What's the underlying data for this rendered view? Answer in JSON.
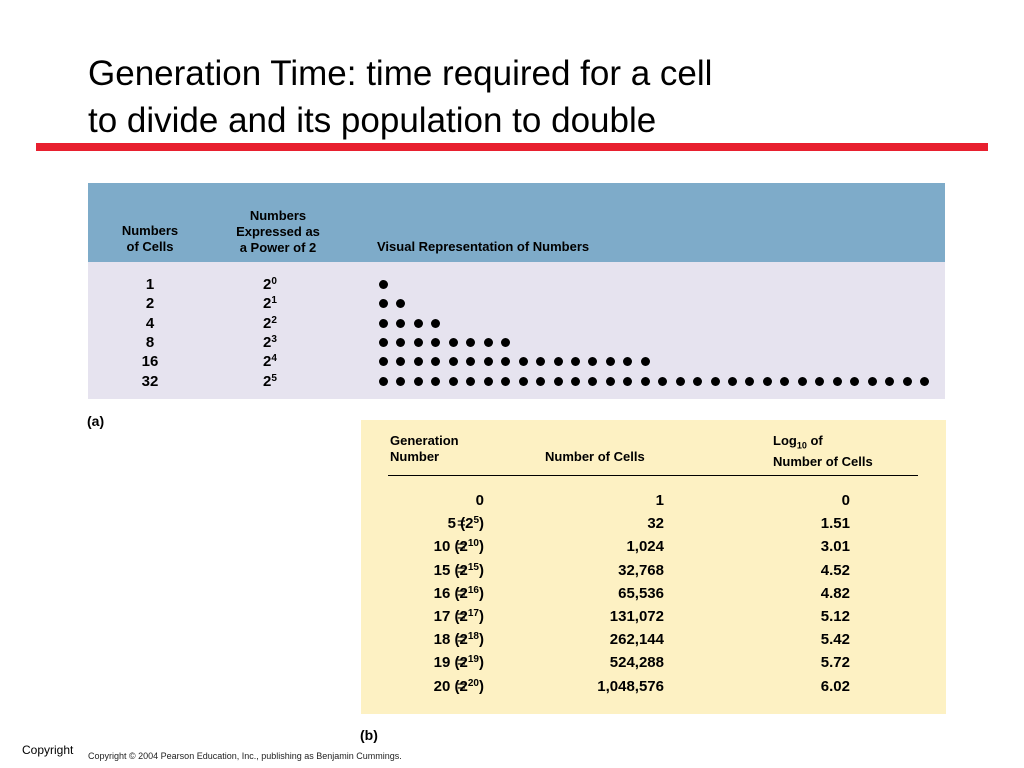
{
  "title": {
    "line1": "Generation Time: time required for a cell",
    "line2": "to divide and its population to double"
  },
  "table_a": {
    "headers": {
      "numbers_of_cells": "Numbers\nof Cells",
      "power_of_2": "Numbers\nExpressed as\na Power of 2",
      "visual": "Visual Representation of Numbers"
    },
    "rows": [
      {
        "count": "1",
        "base": "2",
        "exp": "0",
        "dots": 1
      },
      {
        "count": "2",
        "base": "2",
        "exp": "1",
        "dots": 2
      },
      {
        "count": "4",
        "base": "2",
        "exp": "2",
        "dots": 4
      },
      {
        "count": "8",
        "base": "2",
        "exp": "3",
        "dots": 8
      },
      {
        "count": "16",
        "base": "2",
        "exp": "4",
        "dots": 16
      },
      {
        "count": "32",
        "base": "2",
        "exp": "5",
        "dots": 32
      }
    ],
    "label": "(a)"
  },
  "table_b": {
    "headers": {
      "generation": "Generation\nNumber",
      "cells": "Number of Cells",
      "log_prefix": "Log",
      "log_sub": "10",
      "log_suffix": " of\nNumber of Cells"
    },
    "rows": [
      {
        "gen": "0",
        "pow_base": "",
        "pow_exp": "",
        "pow_close": "",
        "eq": "",
        "cells": "1",
        "log": "0"
      },
      {
        "gen": "5 (2",
        "pow_exp": "5",
        "pow_close": ")",
        "eq": "=",
        "cells": "32",
        "log": "1.51"
      },
      {
        "gen": "10 (2",
        "pow_exp": "10",
        "pow_close": ")",
        "eq": "=",
        "cells": "1,024",
        "log": "3.01"
      },
      {
        "gen": "15 (2",
        "pow_exp": "15",
        "pow_close": ")",
        "eq": "=",
        "cells": "32,768",
        "log": "4.52"
      },
      {
        "gen": "16 (2",
        "pow_exp": "16",
        "pow_close": ")",
        "eq": "=",
        "cells": "65,536",
        "log": "4.82"
      },
      {
        "gen": "17 (2",
        "pow_exp": "17",
        "pow_close": ")",
        "eq": "=",
        "cells": "131,072",
        "log": "5.12"
      },
      {
        "gen": "18 (2",
        "pow_exp": "18",
        "pow_close": ")",
        "eq": "=",
        "cells": "262,144",
        "log": "5.42"
      },
      {
        "gen": "19 (2",
        "pow_exp": "19",
        "pow_close": ")",
        "eq": "=",
        "cells": "524,288",
        "log": "5.72"
      },
      {
        "gen": "20 (2",
        "pow_exp": "20",
        "pow_close": ")",
        "eq": "=",
        "cells": "1,048,576",
        "log": "6.02"
      }
    ],
    "label": "(b)"
  },
  "footer": {
    "copyright_short": "Copyright",
    "copyright_full": "Copyright © 2004 Pearson Education, Inc., publishing as Benjamin Cummings."
  },
  "colors": {
    "rule": "#e8202f",
    "table_a_header": "#7eabc9",
    "table_a_body": "#e6e3ef",
    "table_b_body": "#fdf1c3"
  }
}
